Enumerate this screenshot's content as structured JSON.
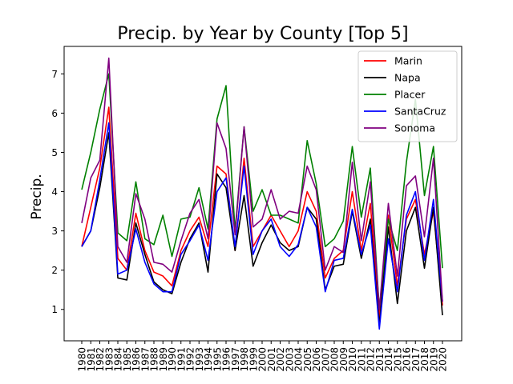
{
  "chart_data": {
    "type": "line",
    "title": "Precip. by Year by County [Top 5]",
    "xlabel": "",
    "ylabel": "Precip.",
    "ylim": [
      0.2,
      7.7
    ],
    "yticks": [
      1,
      2,
      3,
      4,
      5,
      6,
      7
    ],
    "legend_position": "top-right",
    "grid": false,
    "x": [
      1980,
      1981,
      1982,
      1983,
      1984,
      1985,
      1986,
      1987,
      1988,
      1989,
      1990,
      1991,
      1992,
      1993,
      1994,
      1995,
      1996,
      1997,
      1998,
      1999,
      2000,
      2001,
      2002,
      2003,
      2004,
      2005,
      2006,
      2007,
      2008,
      2009,
      2010,
      2011,
      2012,
      2013,
      2014,
      2015,
      2016,
      2017,
      2018,
      2019,
      2020
    ],
    "series": [
      {
        "name": "Marin",
        "color": "#ff0000",
        "values": [
          2.6,
          3.6,
          4.6,
          6.15,
          2.3,
          2.0,
          3.45,
          2.5,
          1.95,
          1.85,
          1.6,
          2.5,
          3.0,
          3.35,
          2.6,
          4.65,
          4.45,
          2.5,
          4.85,
          2.6,
          3.0,
          3.4,
          3.0,
          2.6,
          3.0,
          4.0,
          3.5,
          1.8,
          2.3,
          2.5,
          4.0,
          2.5,
          3.7,
          0.8,
          3.4,
          1.6,
          3.3,
          3.8,
          2.4,
          3.5,
          1.1
        ]
      },
      {
        "name": "Napa",
        "color": "#000000",
        "values": [
          2.6,
          3.0,
          4.1,
          5.5,
          1.8,
          1.75,
          3.2,
          2.4,
          1.7,
          1.5,
          1.4,
          2.2,
          2.8,
          3.2,
          1.95,
          4.45,
          4.1,
          2.5,
          3.9,
          2.1,
          2.7,
          3.15,
          2.7,
          2.5,
          2.6,
          3.6,
          3.3,
          1.5,
          2.1,
          2.15,
          3.5,
          2.3,
          3.3,
          0.6,
          3.1,
          1.15,
          3.0,
          3.6,
          2.05,
          3.6,
          0.85
        ]
      },
      {
        "name": "Placer",
        "color": "#008000",
        "values": [
          4.05,
          5.0,
          6.1,
          7.0,
          2.95,
          2.75,
          4.25,
          2.8,
          2.65,
          3.4,
          2.35,
          3.3,
          3.35,
          4.1,
          3.05,
          5.85,
          6.7,
          3.0,
          5.65,
          3.5,
          4.05,
          3.4,
          3.4,
          3.3,
          3.2,
          5.3,
          4.2,
          2.6,
          2.8,
          3.25,
          5.15,
          3.35,
          4.6,
          1.0,
          3.3,
          2.5,
          4.75,
          6.35,
          3.9,
          5.15,
          2.05
        ]
      },
      {
        "name": "SantaCruz",
        "color": "#0000ff",
        "values": [
          2.6,
          3.0,
          4.3,
          5.75,
          1.9,
          2.0,
          3.05,
          2.2,
          1.65,
          1.45,
          1.45,
          2.4,
          2.75,
          3.15,
          2.25,
          4.0,
          4.35,
          2.6,
          4.65,
          2.4,
          3.0,
          3.3,
          2.6,
          2.35,
          2.65,
          3.6,
          3.1,
          1.45,
          2.25,
          2.3,
          3.55,
          2.4,
          3.15,
          0.5,
          2.8,
          1.45,
          3.4,
          4.0,
          2.25,
          3.8,
          1.2
        ]
      },
      {
        "name": "Sonoma",
        "color": "#800080",
        "values": [
          3.2,
          4.35,
          4.8,
          7.4,
          2.6,
          2.2,
          3.95,
          3.3,
          2.2,
          2.15,
          1.95,
          2.75,
          3.45,
          3.8,
          2.8,
          5.75,
          5.1,
          2.9,
          5.65,
          3.1,
          3.3,
          4.05,
          3.3,
          3.5,
          3.45,
          4.65,
          4.05,
          2.0,
          2.6,
          2.45,
          4.75,
          2.75,
          4.25,
          1.0,
          3.7,
          1.85,
          4.15,
          4.4,
          2.85,
          4.85,
          1.2
        ]
      }
    ]
  }
}
